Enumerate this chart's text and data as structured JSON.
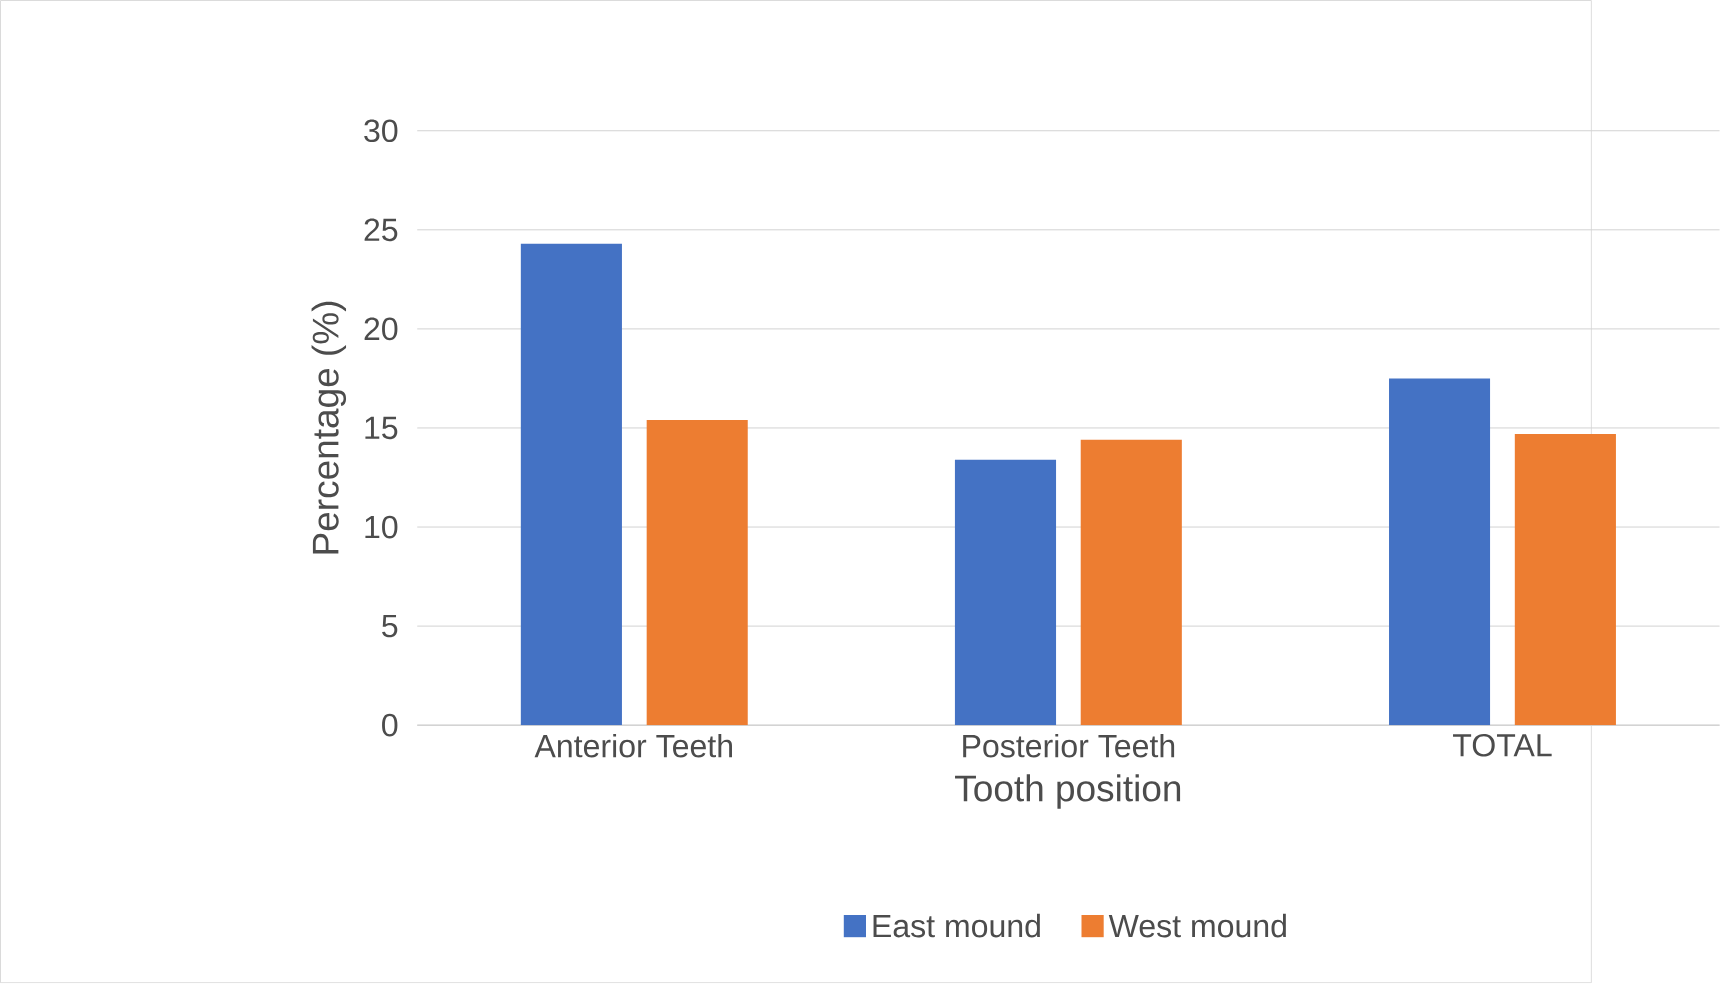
{
  "chart_data": {
    "type": "bar",
    "xlabel": "Tooth position",
    "ylabel": "Percentage (%)",
    "categories": [
      "Anterior Teeth",
      "Posterior Teeth",
      "TOTAL"
    ],
    "series": [
      {
        "name": "East mound",
        "color": "#4472c4",
        "values": [
          24.3,
          13.4,
          17.5
        ]
      },
      {
        "name": "West mound",
        "color": "#ed7d31",
        "values": [
          15.4,
          14.4,
          14.7
        ]
      }
    ],
    "ylim": [
      0,
      30
    ],
    "yticks": [
      0,
      5,
      10,
      15,
      20,
      25,
      30
    ],
    "grid": "y",
    "legend": "bottom"
  }
}
